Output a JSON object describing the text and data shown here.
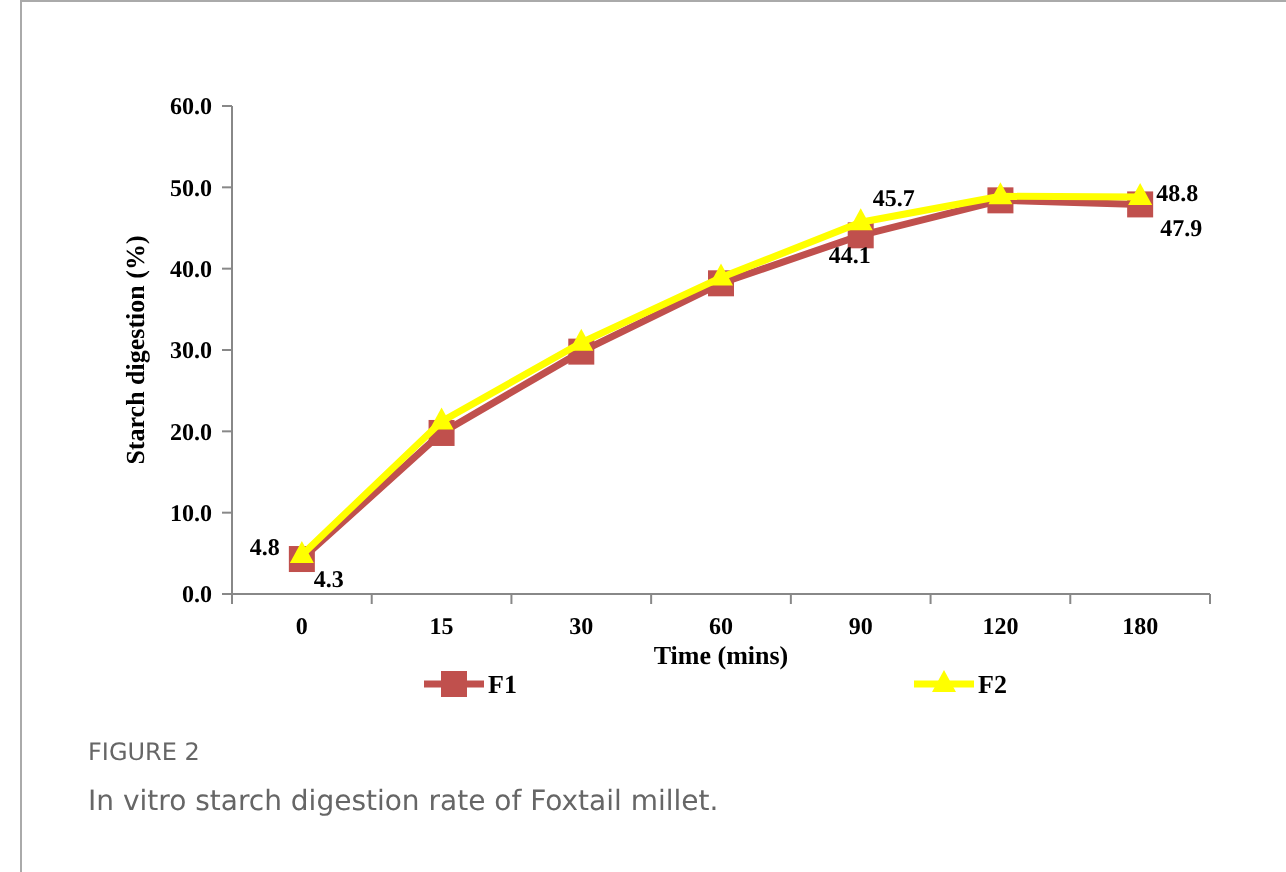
{
  "chart_data": {
    "type": "line",
    "xlabel": "Time (mins)",
    "ylabel": "Starch digestion (%)",
    "categories": [
      "0",
      "15",
      "30",
      "60",
      "90",
      "120",
      "180"
    ],
    "ylim": [
      0,
      60
    ],
    "yticks": [
      {
        "value": 0,
        "label": "0.0"
      },
      {
        "value": 10,
        "label": "10.0"
      },
      {
        "value": 20,
        "label": "20.0"
      },
      {
        "value": 30,
        "label": "30.0"
      },
      {
        "value": 40,
        "label": "40.0"
      },
      {
        "value": 50,
        "label": "50.0"
      },
      {
        "value": 60,
        "label": "60.0"
      }
    ],
    "series": [
      {
        "name": "F1",
        "color": "#c0504d",
        "marker": "square",
        "values": [
          4.3,
          19.8,
          29.8,
          38.2,
          44.1,
          48.4,
          47.9
        ],
        "value_labels": [
          "4.3",
          null,
          null,
          null,
          "44.1",
          null,
          "47.9"
        ]
      },
      {
        "name": "F2",
        "color": "#ffff00",
        "marker": "triangle",
        "values": [
          4.8,
          21.2,
          30.9,
          38.9,
          45.7,
          48.9,
          48.8
        ],
        "value_labels": [
          "4.8",
          null,
          null,
          null,
          "45.7",
          null,
          "48.8"
        ]
      }
    ],
    "legend": "bottom",
    "grid": false,
    "annotations": [
      "FIGURE 2",
      "In vitro starch digestion rate of Foxtail millet."
    ]
  }
}
